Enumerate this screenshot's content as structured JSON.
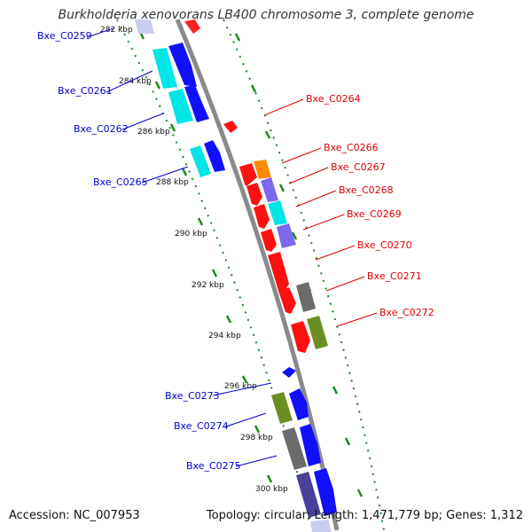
{
  "title": "Burkholderia xenovorans LB400 chromosome 3, complete genome",
  "accession": "Accession: NC_007953",
  "topology_info": "Topology: circular; Length: 1,471,779 bp; Genes: 1,312",
  "colors": {
    "backbone": "#8a8a8a",
    "ticks": "#1a8a1a",
    "label_left": "#0000cc",
    "label_right": "#dd0000",
    "blue": "#0000ff",
    "cyan": "#00e5e5",
    "red": "#ff0000",
    "orange": "#ff8c00",
    "slate": "#7b68ee",
    "gray": "#6b6b6b",
    "olive": "#6b8e23",
    "dark_slate": "#48409a"
  },
  "axis": {
    "unit": "kbp",
    "ticks": [
      {
        "label": "282 kbp"
      },
      {
        "label": "284 kbp"
      },
      {
        "label": "286 kbp"
      },
      {
        "label": "288 kbp"
      },
      {
        "label": "290 kbp"
      },
      {
        "label": "292 kbp"
      },
      {
        "label": "294 kbp"
      },
      {
        "label": "296 kbp"
      },
      {
        "label": "298 kbp"
      },
      {
        "label": "300 kbp"
      }
    ]
  },
  "genes_left": [
    {
      "label": "Bxe_C0259"
    },
    {
      "label": "Bxe_C0261"
    },
    {
      "label": "Bxe_C0262"
    },
    {
      "label": "Bxe_C0265"
    },
    {
      "label": "Bxe_C0273"
    },
    {
      "label": "Bxe_C0274"
    },
    {
      "label": "Bxe_C0275"
    }
  ],
  "genes_right": [
    {
      "label": "Bxe_C0264"
    },
    {
      "label": "Bxe_C0266"
    },
    {
      "label": "Bxe_C0267"
    },
    {
      "label": "Bxe_C0268"
    },
    {
      "label": "Bxe_C0269"
    },
    {
      "label": "Bxe_C0270"
    },
    {
      "label": "Bxe_C0271"
    },
    {
      "label": "Bxe_C0272"
    }
  ]
}
